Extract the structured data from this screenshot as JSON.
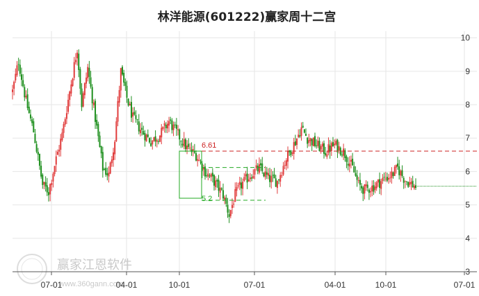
{
  "chart_data": {
    "type": "candlestick",
    "title": "林洋能源(601222)赢家周十二宫",
    "y_ticks": [
      3,
      4,
      5,
      6,
      7,
      8,
      9,
      10
    ],
    "ylim": [
      3,
      10.2
    ],
    "x_ticks": [
      "07-01",
      "04-01",
      "10-01",
      "07-01",
      "04-01",
      "10-01",
      "07-01"
    ],
    "grid": true,
    "annotations": {
      "upper_level": {
        "value": 6.61,
        "label": "6.61",
        "color": "#cc2222"
      },
      "lower_level": {
        "value": 5.2,
        "label": "5.2",
        "color": "#22aa22"
      },
      "box": {
        "top": 6.61,
        "bottom": 5.2,
        "middle_dashed": 6.12,
        "lower_dashed": 5.14
      }
    },
    "last_close_line": 5.56,
    "colors": {
      "up": "#e03b3b",
      "down": "#1e8f1e",
      "grid": "#e6e6e6",
      "axis": "#555555"
    },
    "price_path_keypoints": [
      [
        0,
        8.4
      ],
      [
        4,
        9.3
      ],
      [
        9,
        8.1
      ],
      [
        14,
        7.2
      ],
      [
        20,
        5.6
      ],
      [
        24,
        5.4
      ],
      [
        28,
        6.2
      ],
      [
        33,
        7.1
      ],
      [
        38,
        8.4
      ],
      [
        43,
        9.7
      ],
      [
        46,
        8.0
      ],
      [
        50,
        9.1
      ],
      [
        55,
        7.6
      ],
      [
        60,
        6.1
      ],
      [
        64,
        5.9
      ],
      [
        68,
        7.0
      ],
      [
        72,
        9.0
      ],
      [
        76,
        8.2
      ],
      [
        80,
        7.6
      ],
      [
        86,
        7.2
      ],
      [
        92,
        6.9
      ],
      [
        98,
        7.1
      ],
      [
        104,
        7.5
      ],
      [
        110,
        7.1
      ],
      [
        116,
        6.7
      ],
      [
        122,
        6.5
      ],
      [
        128,
        6.0
      ],
      [
        134,
        5.7
      ],
      [
        140,
        5.3
      ],
      [
        144,
        4.7
      ],
      [
        148,
        5.3
      ],
      [
        152,
        5.6
      ],
      [
        158,
        5.9
      ],
      [
        164,
        6.1
      ],
      [
        170,
        5.8
      ],
      [
        176,
        5.7
      ],
      [
        182,
        6.4
      ],
      [
        188,
        6.9
      ],
      [
        192,
        7.3
      ],
      [
        196,
        7.0
      ],
      [
        202,
        6.8
      ],
      [
        208,
        6.6
      ],
      [
        214,
        6.8
      ],
      [
        220,
        6.6
      ],
      [
        226,
        6.1
      ],
      [
        230,
        5.6
      ],
      [
        234,
        5.45
      ],
      [
        240,
        5.55
      ],
      [
        246,
        5.75
      ],
      [
        252,
        5.9
      ],
      [
        256,
        6.1
      ],
      [
        260,
        5.8
      ],
      [
        264,
        5.65
      ],
      [
        268,
        5.56
      ]
    ]
  },
  "watermark": {
    "text": "赢家江恩软件",
    "url": "www.360gann.com"
  }
}
